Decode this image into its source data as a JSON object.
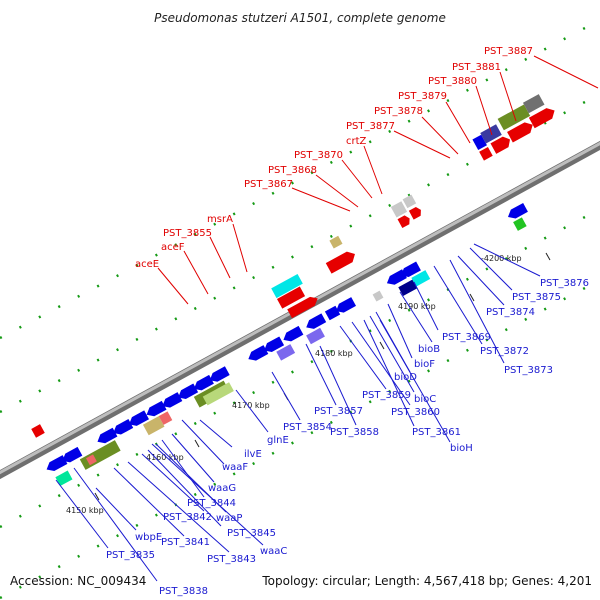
{
  "title": "Pseudomonas stutzeri A1501, complete genome",
  "footer": {
    "accession": "Accession: NC_009434",
    "topology": "Topology: circular; Length: 4,567,418 bp; Genes: 4,201"
  },
  "ticks": [
    {
      "label": "4150 kbp"
    },
    {
      "label": "4160 kbp"
    },
    {
      "label": "4170 kbp"
    },
    {
      "label": "4180 kbp"
    },
    {
      "label": "4190 kbp"
    },
    {
      "label": "-4200 kbp"
    }
  ],
  "labels_top": [
    {
      "text": "aceE"
    },
    {
      "text": "aceF"
    },
    {
      "text": "PST_3855"
    },
    {
      "text": "msrA"
    },
    {
      "text": "PST_3867"
    },
    {
      "text": "PST_3868"
    },
    {
      "text": "PST_3870"
    },
    {
      "text": "crtZ"
    },
    {
      "text": "PST_3877"
    },
    {
      "text": "PST_3878"
    },
    {
      "text": "PST_3879"
    },
    {
      "text": "PST_3880"
    },
    {
      "text": "PST_3881"
    },
    {
      "text": "PST_3887"
    }
  ],
  "labels_bottom": [
    {
      "text": "PST_3838"
    },
    {
      "text": "PST_3835"
    },
    {
      "text": "wbpE"
    },
    {
      "text": "PST_3841"
    },
    {
      "text": "PST_3843"
    },
    {
      "text": "PST_3842"
    },
    {
      "text": "waaC"
    },
    {
      "text": "PST_3845"
    },
    {
      "text": "waaP"
    },
    {
      "text": "PST_3844"
    },
    {
      "text": "waaG"
    },
    {
      "text": "waaF"
    },
    {
      "text": "ilvE"
    },
    {
      "text": "glnE"
    },
    {
      "text": "PST_3854"
    },
    {
      "text": "PST_3857"
    },
    {
      "text": "PST_3858"
    },
    {
      "text": "PST_3859"
    },
    {
      "text": "PST_3860"
    },
    {
      "text": "PST_3861"
    },
    {
      "text": "bioC"
    },
    {
      "text": "bioD"
    },
    {
      "text": "bioF"
    },
    {
      "text": "bioB"
    },
    {
      "text": "bioH"
    },
    {
      "text": "PST_3869"
    },
    {
      "text": "PST_3872"
    },
    {
      "text": "PST_3873"
    },
    {
      "text": "PST_3874"
    },
    {
      "text": "PST_3875"
    },
    {
      "text": "PST_3876"
    }
  ],
  "colors": {
    "backbone": "#9a9a9a",
    "forward_gene": "#e60000",
    "reverse_gene": "#0000e6",
    "rna_feature": "#00e6e6",
    "top_label": "#e00000",
    "bottom_label": "#1a1ad0"
  }
}
